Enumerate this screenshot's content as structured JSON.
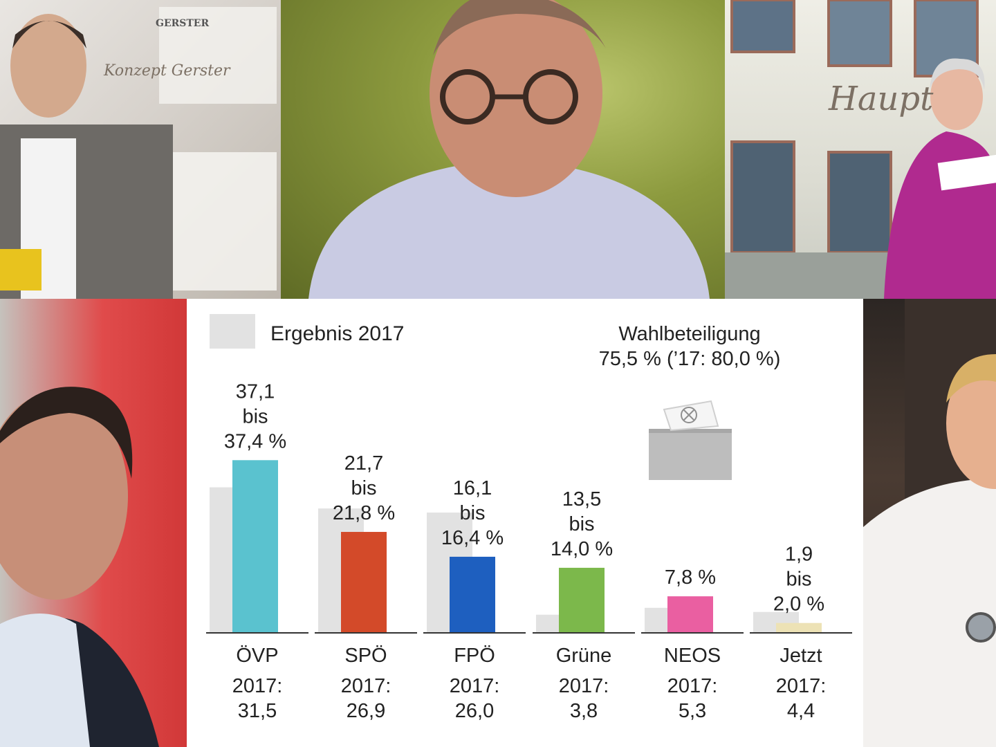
{
  "photos": [
    {
      "name": "photo-top-left",
      "sign_text": "Konzept Gerster",
      "sign_logo": "GERSTER"
    },
    {
      "name": "photo-top-center"
    },
    {
      "name": "photo-top-right",
      "sign_text": "Haupt"
    },
    {
      "name": "photo-bottom-left"
    },
    {
      "name": "photo-bottom-right"
    }
  ],
  "legend": {
    "label": "Ergebnis 2017",
    "swatch_color": "#e2e2e2"
  },
  "turnout": {
    "title": "Wahlbeteiligung",
    "value": "75,5 % (’17: 80,0 %)",
    "icon": "ballot-box-icon"
  },
  "chart_data": {
    "type": "bar",
    "categories": [
      "ÖVP",
      "SPÖ",
      "FPÖ",
      "Grüne",
      "NEOS",
      "Jetzt"
    ],
    "series": [
      {
        "name": "Ergebnis 2017",
        "values": [
          31.5,
          26.9,
          26.0,
          3.8,
          5.3,
          4.4
        ],
        "color": "#e2e2e2"
      },
      {
        "values": [
          37.4,
          21.8,
          16.4,
          14.0,
          7.8,
          2.0
        ],
        "colors": [
          "#5ac2cf",
          "#d34a29",
          "#1e5fbf",
          "#7cb84b",
          "#ea5fa1",
          "#ede2b5"
        ]
      }
    ],
    "result_labels": [
      [
        "37,1",
        "bis",
        "37,4 %"
      ],
      [
        "21,7",
        "bis",
        "21,8 %"
      ],
      [
        "16,1",
        "bis",
        "16,4 %"
      ],
      [
        "13,5",
        "bis",
        "14,0 %"
      ],
      [
        "7,8 %"
      ],
      [
        "1,9",
        "bis",
        "2,0 %"
      ]
    ],
    "prior_labels": [
      [
        "2017:",
        "31,5"
      ],
      [
        "2017:",
        "26,9"
      ],
      [
        "2017:",
        "26,0"
      ],
      [
        "2017:",
        "3,8"
      ],
      [
        "2017:",
        "5,3"
      ],
      [
        "2017:",
        "4,4"
      ]
    ],
    "ylim": [
      0,
      40
    ],
    "grid": false
  }
}
